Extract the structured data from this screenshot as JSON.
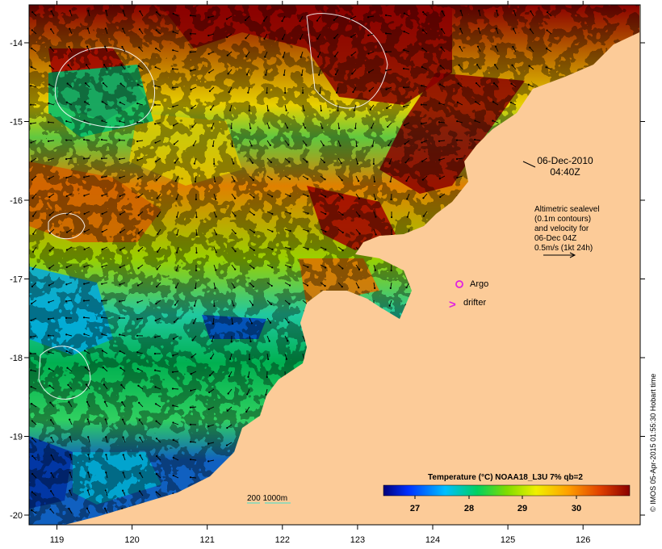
{
  "map": {
    "date": "06-Dec-2010",
    "time": "04:40Z",
    "legend_info": [
      "Altimetric sealevel",
      "(0.1m contours)",
      "and velocity for",
      "06-Dec 04Z",
      "0.5m/s (1kt 24h)"
    ],
    "argo_label": "Argo",
    "drifter_label": "drifter",
    "drifter_symbol": ">",
    "depth_scale_label": "200  1000m",
    "colorbar_title": "Temperature (°C) NOAA18_L3U 7% qb=2",
    "colorbar_ticks": [
      "27",
      "28",
      "29",
      "30"
    ],
    "credit": "© IMOS 05-Apr-2015 01:55:30 Hobart time",
    "x_ticks": [
      "119",
      "120",
      "121",
      "122",
      "123",
      "124",
      "125",
      "126"
    ],
    "y_ticks": [
      "-14",
      "-15",
      "-16",
      "-17",
      "-18",
      "-19",
      "-20"
    ],
    "colors": {
      "land": "#fccb98",
      "argo": "#e020e0",
      "drifter": "#e020e0",
      "contour_depth": "#40e0d0",
      "sealevel_contour": "#ffffff"
    }
  }
}
